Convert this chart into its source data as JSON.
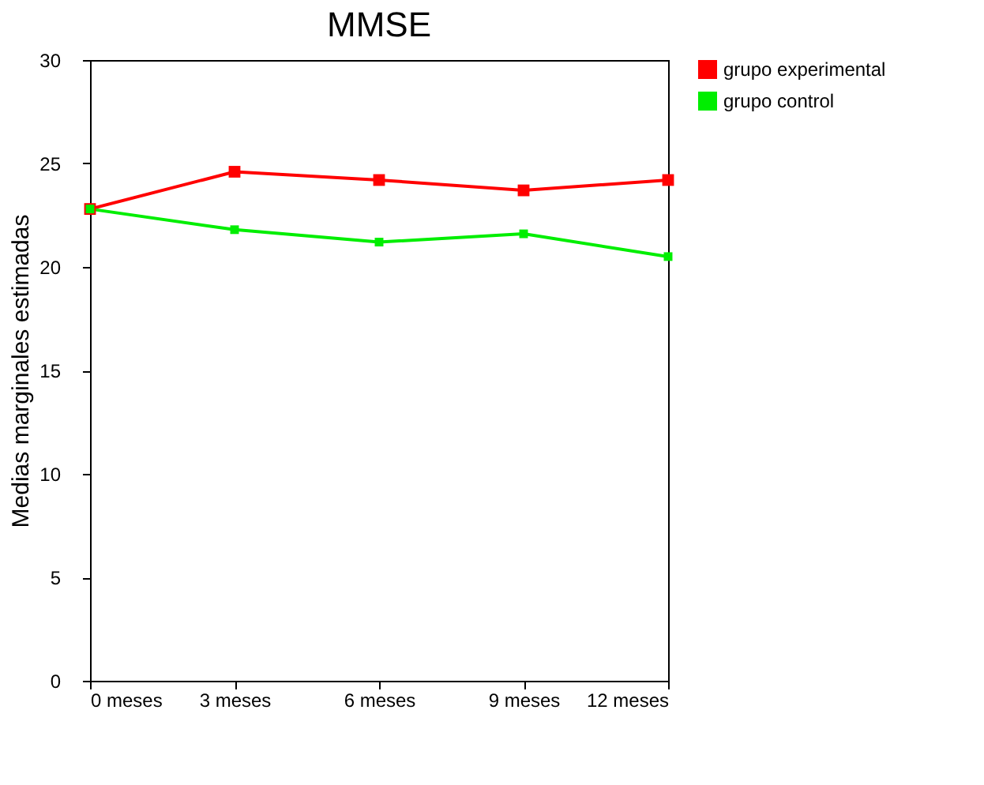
{
  "chart_data": {
    "type": "line",
    "title": "MMSE",
    "ylabel": "Medias marginales estimadas",
    "categories": [
      "0 meses",
      "3 meses",
      "6 meses",
      "9 meses",
      "12 meses"
    ],
    "series": [
      {
        "name": "grupo experimental",
        "color": "#ff0000",
        "values": [
          22.8,
          24.6,
          24.2,
          23.7,
          24.2
        ]
      },
      {
        "name": "grupo control",
        "color": "#00ee00",
        "values": [
          22.8,
          21.8,
          21.2,
          21.6,
          20.5
        ]
      }
    ],
    "ylim": [
      0,
      30
    ],
    "yticks": [
      0,
      5,
      10,
      15,
      20,
      25,
      30
    ],
    "grid": false,
    "legend": "right",
    "marker": "square",
    "line_style": "solid"
  }
}
